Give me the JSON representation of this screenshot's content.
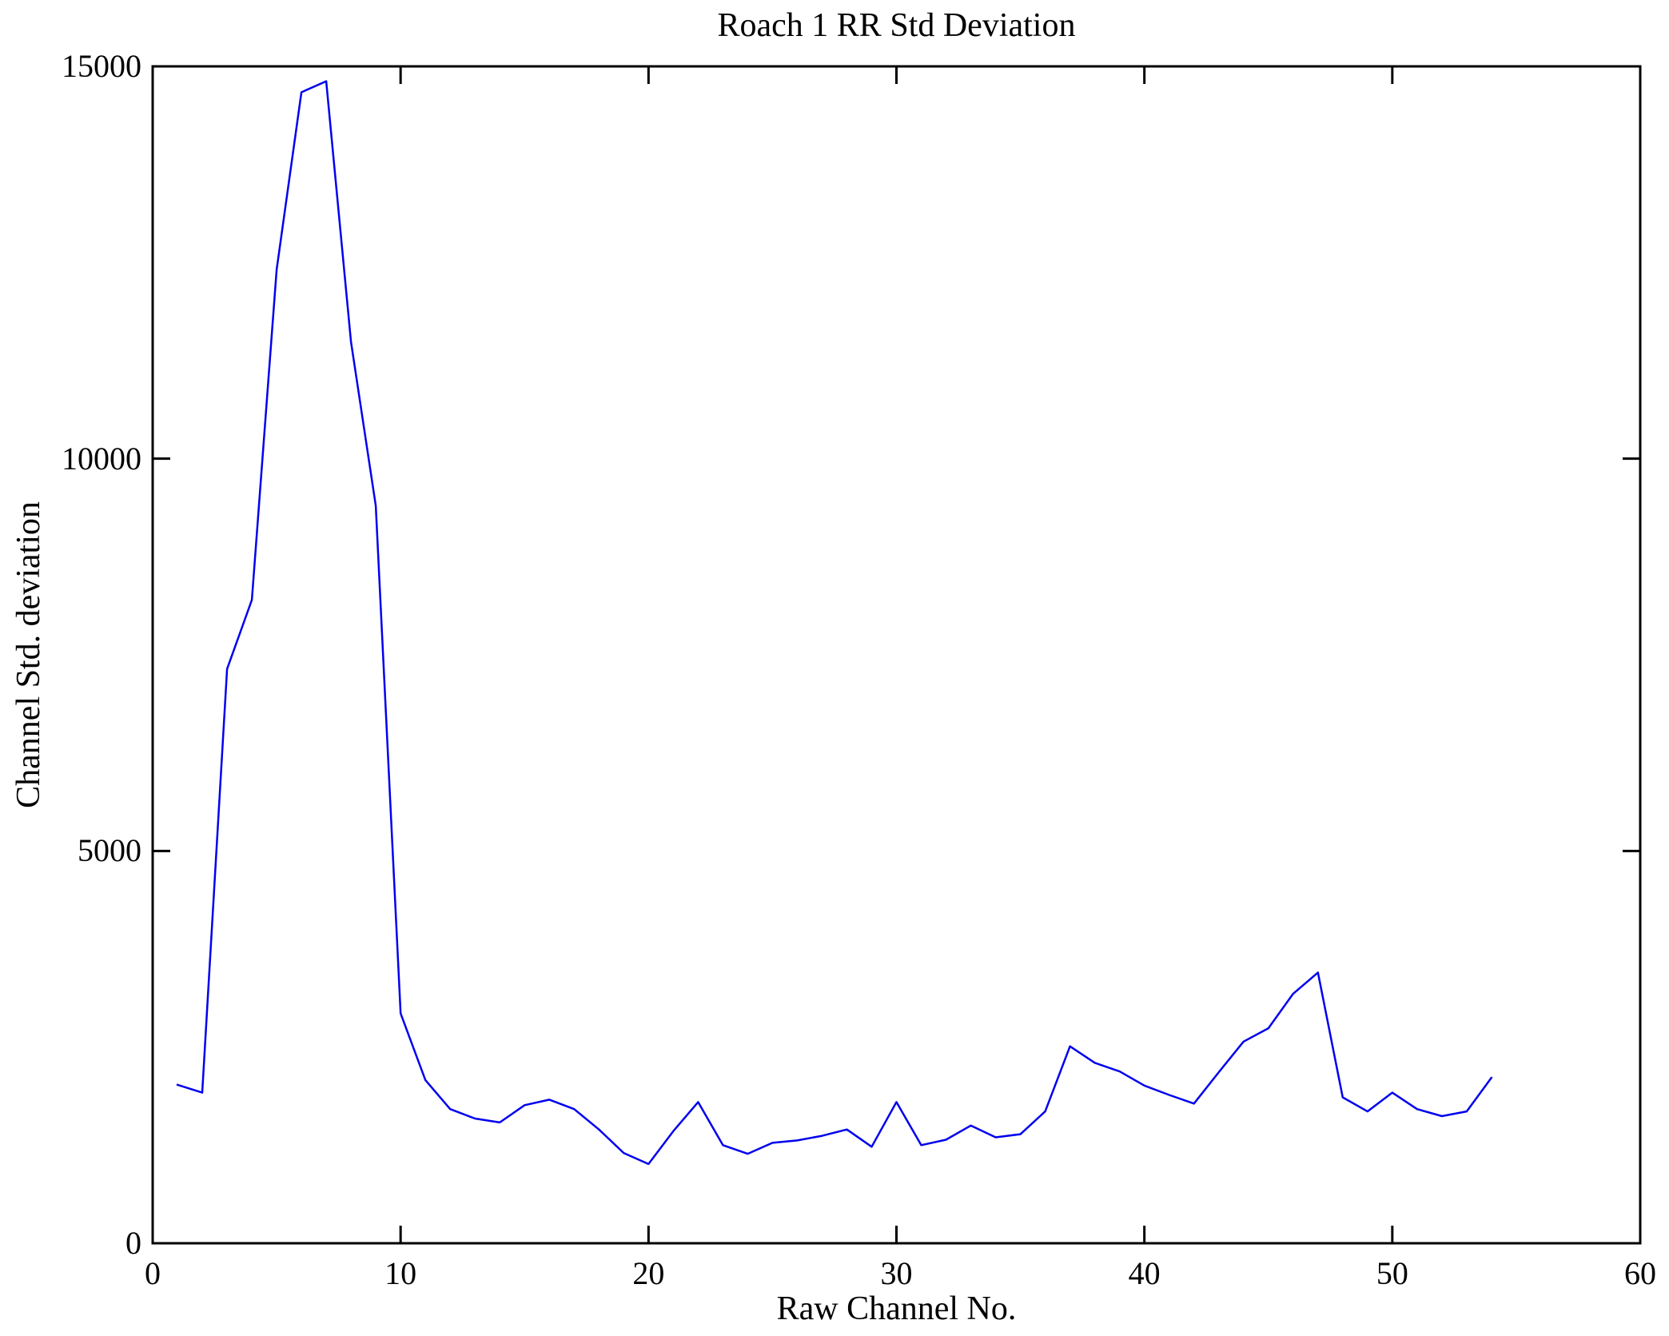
{
  "title": "Roach 1 RR Std Deviation",
  "chart_data": {
    "type": "line",
    "title": "Roach 1 RR Std Deviation",
    "xlabel": "Raw Channel No.",
    "ylabel": "Channel Std. deviation",
    "xlim": [
      0,
      60
    ],
    "ylim": [
      0,
      15000
    ],
    "xticks": [
      0,
      10,
      20,
      30,
      40,
      50,
      60
    ],
    "yticks": [
      0,
      5000,
      10000,
      15000
    ],
    "grid": false,
    "legend": "none",
    "line_color": "#0000EE",
    "frame_color": "#000000",
    "x": [
      1,
      2,
      3,
      4,
      5,
      6,
      7,
      8,
      9,
      10,
      11,
      12,
      13,
      14,
      15,
      16,
      17,
      18,
      19,
      20,
      21,
      22,
      23,
      24,
      25,
      26,
      27,
      28,
      29,
      30,
      31,
      32,
      33,
      34,
      35,
      36,
      37,
      38,
      39,
      40,
      41,
      42,
      43,
      44,
      45,
      46,
      47,
      48,
      49,
      50,
      51,
      52,
      53,
      54
    ],
    "values": [
      2020,
      1920,
      7320,
      8200,
      12410,
      14670,
      14810,
      11490,
      9400,
      2930,
      2080,
      1710,
      1590,
      1540,
      1760,
      1830,
      1710,
      1450,
      1150,
      1010,
      1430,
      1800,
      1250,
      1140,
      1280,
      1310,
      1370,
      1450,
      1230,
      1800,
      1250,
      1320,
      1500,
      1350,
      1390,
      1680,
      2510,
      2300,
      2190,
      2010,
      1890,
      1780,
      2180,
      2570,
      2740,
      3180,
      3450,
      1860,
      1680,
      1920,
      1710,
      1620,
      1680,
      2110
    ]
  }
}
